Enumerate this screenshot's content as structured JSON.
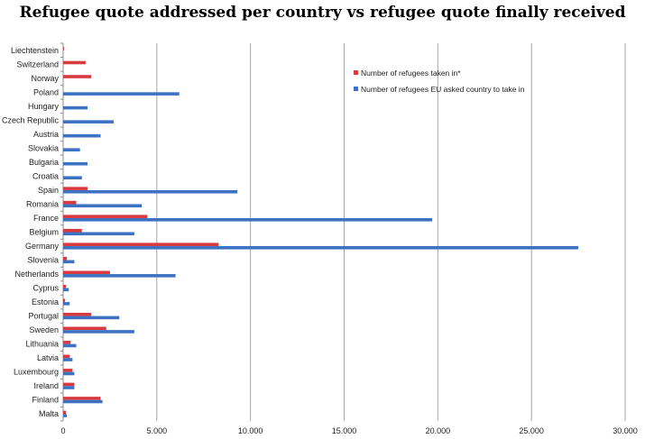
{
  "chart_data": {
    "type": "bar",
    "orientation": "horizontal",
    "title": "Refugee quote addressed per country vs refugee quote finally received",
    "categories": [
      "Liechtenstein",
      "Switzerland",
      "Norway",
      "Poland",
      "Hungary",
      "Czech Republic",
      "Austria",
      "Slovakia",
      "Bulgaria",
      "Croatia",
      "Spain",
      "Romania",
      "France",
      "Belgium",
      "Germany",
      "Slovenia",
      "Netherlands",
      "Cyprus",
      "Estonia",
      "Portugal",
      "Sweden",
      "Lithuania",
      "Latvia",
      "Luxembourg",
      "Ireland",
      "Finland",
      "Malta"
    ],
    "series": [
      {
        "name": "Number of refugees taken in*",
        "color": "#d93a3f",
        "values": [
          43,
          1200,
          1500,
          0,
          0,
          0,
          0,
          0,
          0,
          0,
          1300,
          700,
          4500,
          1000,
          8300,
          200,
          2500,
          150,
          100,
          1500,
          2300,
          400,
          350,
          500,
          600,
          2000,
          150
        ]
      },
      {
        "name": "Number of refugees EU asked country to take in",
        "color": "#3d72c2",
        "values": [
          0,
          0,
          0,
          6200,
          1300,
          2700,
          2000,
          900,
          1300,
          1000,
          9300,
          4200,
          19700,
          3800,
          27500,
          600,
          6000,
          300,
          350,
          3000,
          3800,
          700,
          500,
          600,
          600,
          2100,
          200
        ]
      }
    ],
    "x_ticks": [
      "0",
      "5.000",
      "10.000",
      "15.000",
      "20.000",
      "25.000",
      "30.000"
    ],
    "xlim": [
      0,
      30000
    ],
    "grid": true,
    "legend_position": "top-right"
  }
}
